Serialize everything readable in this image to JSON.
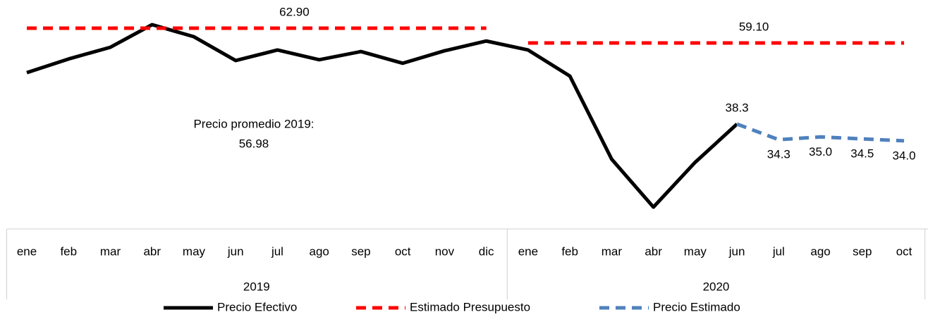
{
  "chart_data": {
    "type": "line",
    "categories": [
      "ene",
      "feb",
      "mar",
      "abr",
      "may",
      "jun",
      "jul",
      "ago",
      "sep",
      "oct",
      "nov",
      "dic",
      "ene",
      "feb",
      "mar",
      "abr",
      "may",
      "jun",
      "jul",
      "ago",
      "sep",
      "oct"
    ],
    "groups": [
      {
        "label": "2019",
        "count": 12
      },
      {
        "label": "2020",
        "count": 10
      }
    ],
    "series": [
      {
        "name": "Precio Efectivo",
        "color": "#000000",
        "dash": "solid",
        "values": [
          51.5,
          55.0,
          58.0,
          63.8,
          60.7,
          54.6,
          57.3,
          54.8,
          56.9,
          53.9,
          57.1,
          59.6,
          57.3,
          50.6,
          29.3,
          17.0,
          28.5,
          38.3,
          null,
          null,
          null,
          null
        ]
      },
      {
        "name": "Estimado Presupuesto",
        "color": "#ff0000",
        "dash": "dashed",
        "values": [
          62.9,
          62.9,
          62.9,
          62.9,
          62.9,
          62.9,
          62.9,
          62.9,
          62.9,
          62.9,
          62.9,
          62.9,
          59.1,
          59.1,
          59.1,
          59.1,
          59.1,
          59.1,
          59.1,
          59.1,
          59.1,
          59.1
        ],
        "value_labels": [
          null,
          null,
          null,
          null,
          null,
          null,
          "62.90",
          null,
          null,
          null,
          null,
          null,
          null,
          null,
          null,
          null,
          null,
          "59.10",
          null,
          null,
          null,
          null
        ]
      },
      {
        "name": "Precio Estimado",
        "color": "#4f81bd",
        "dash": "dashed",
        "values": [
          null,
          null,
          null,
          null,
          null,
          null,
          null,
          null,
          null,
          null,
          null,
          null,
          null,
          null,
          null,
          null,
          null,
          38.3,
          34.3,
          35.0,
          34.5,
          34.0
        ],
        "value_labels": [
          null,
          null,
          null,
          null,
          null,
          null,
          null,
          null,
          null,
          null,
          null,
          null,
          null,
          null,
          null,
          null,
          null,
          "38.3",
          "34.3",
          "35.0",
          "34.5",
          "34.0"
        ]
      }
    ],
    "annotation": [
      "Precio promedio 2019:",
      "56.98"
    ]
  }
}
